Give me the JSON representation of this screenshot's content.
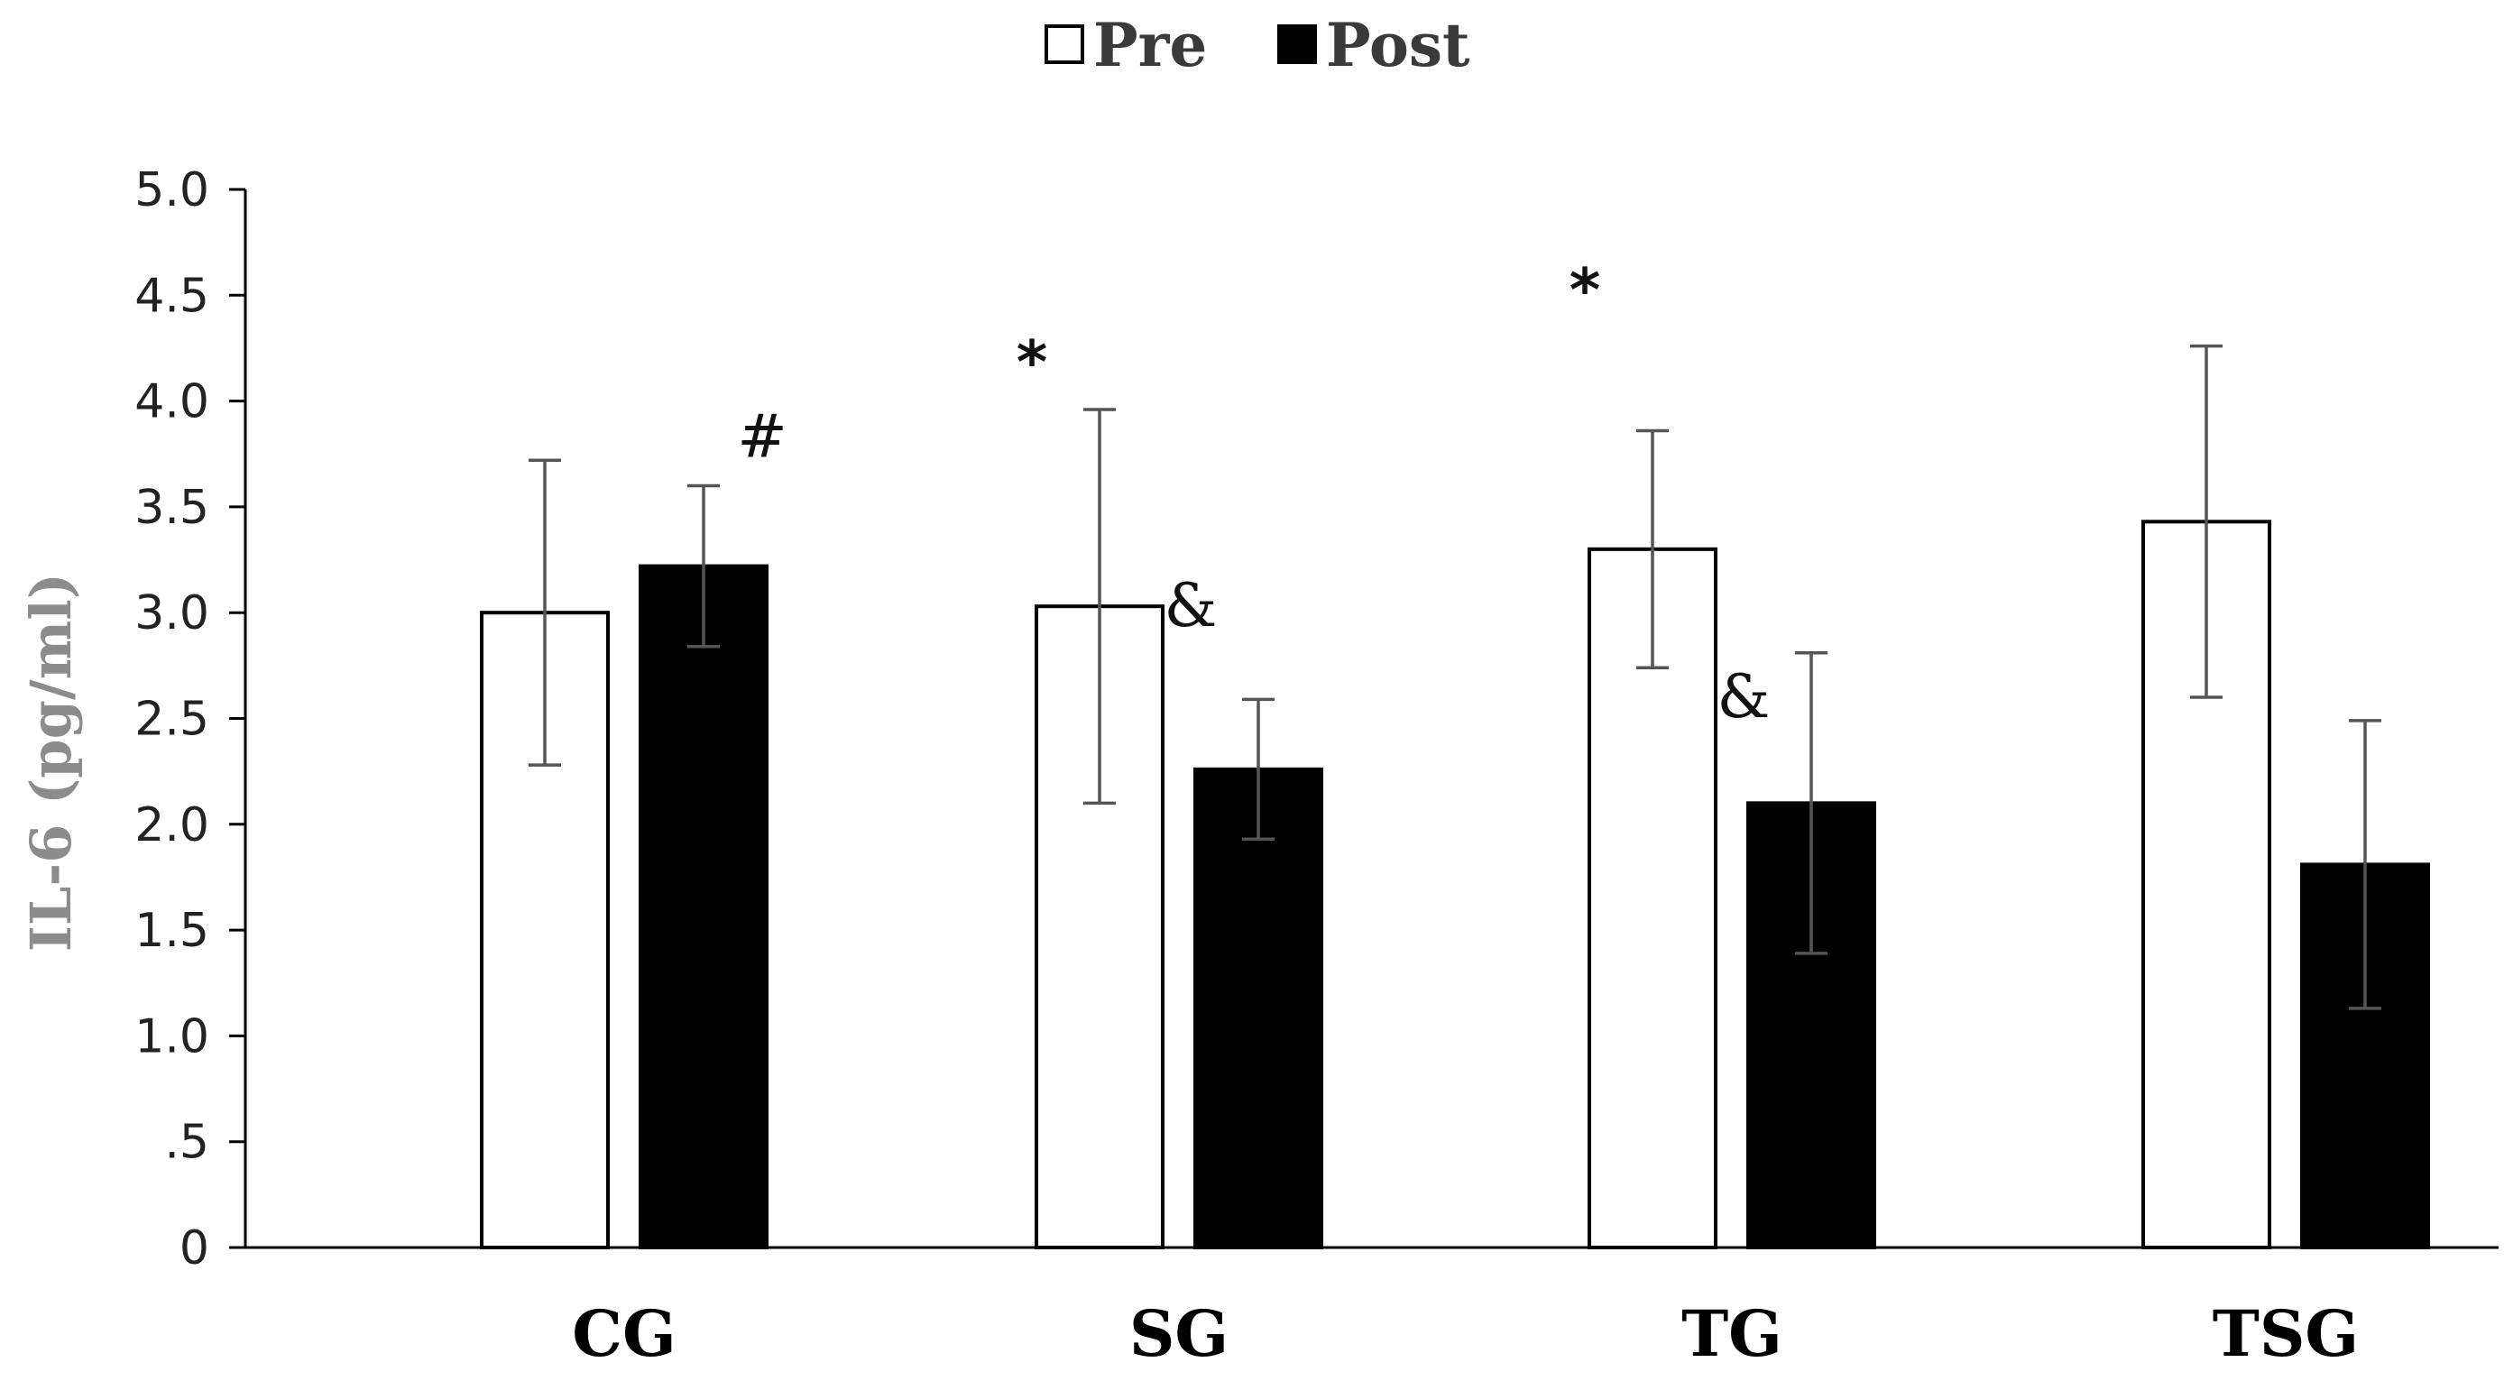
{
  "chart_data": {
    "type": "bar",
    "title": "",
    "xlabel": "",
    "ylabel": "IL-6 (pg/ml)",
    "ylim": [
      0,
      5.0
    ],
    "yticks": [
      0,
      0.5,
      1.0,
      1.5,
      2.0,
      2.5,
      3.0,
      3.5,
      4.0,
      4.5,
      5.0
    ],
    "ytick_labels": [
      "0",
      ".5",
      "1.0",
      "1.5",
      "2.0",
      "2.5",
      "3.0",
      "3.5",
      "4.0",
      "4.5",
      "5.0"
    ],
    "grid": false,
    "legend_position": "top-center",
    "categories": [
      "CG",
      "SG",
      "TG",
      "TSG"
    ],
    "series": [
      {
        "name": "Pre",
        "fill": "#ffffff",
        "values": [
          3.0,
          3.03,
          3.3,
          3.43
        ],
        "errors": [
          0.72,
          0.93,
          0.56,
          0.83
        ]
      },
      {
        "name": "Post",
        "fill": "#000000",
        "values": [
          3.22,
          2.26,
          2.1,
          1.81
        ],
        "errors": [
          0.38,
          0.33,
          0.71,
          0.68
        ]
      }
    ],
    "annotations": [
      {
        "text": "#",
        "category": "CG",
        "series": "Post",
        "placement": "upper-right",
        "y": 3.83
      },
      {
        "text": "*",
        "category": "SG",
        "series": "Pre",
        "placement": "upper-left",
        "y": 4.18
      },
      {
        "text": "&",
        "category": "SG",
        "series": "Post",
        "placement": "upper-left",
        "y": 3.03
      },
      {
        "text": "*",
        "category": "TG",
        "series": "Pre",
        "placement": "upper-left",
        "y": 4.52
      },
      {
        "text": "&",
        "category": "TG",
        "series": "Post",
        "placement": "upper-left",
        "y": 2.6
      }
    ]
  }
}
